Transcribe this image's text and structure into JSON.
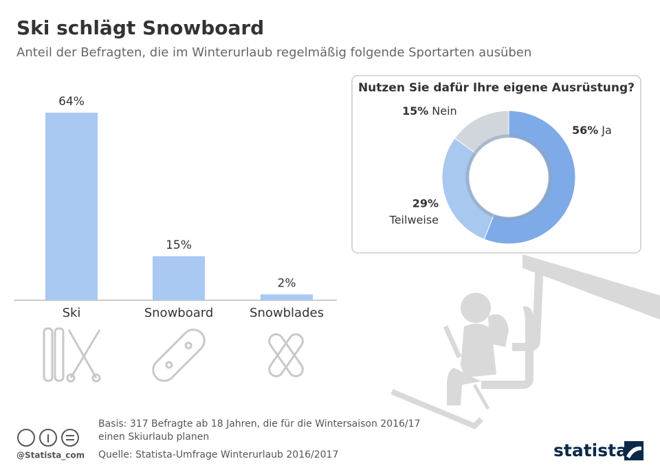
{
  "header": {
    "title": "Ski schlägt Snowboard",
    "subtitle": "Anteil der Befragten, die im Winterurlaub regelmäßig folgende Sportarten ausüben"
  },
  "chart_data": [
    {
      "type": "bar",
      "categories": [
        "Ski",
        "Snowboard",
        "Snowblades"
      ],
      "values": [
        64,
        15,
        2
      ],
      "value_labels": [
        "64%",
        "15%",
        "2%"
      ],
      "color": "#a9c8f2"
    },
    {
      "type": "pie",
      "title": "Nutzen Sie dafür Ihre eigene Ausrüstung?",
      "categories": [
        "Ja",
        "Teilweise",
        "Nein"
      ],
      "values": [
        56,
        29,
        15
      ],
      "value_labels": [
        "56%",
        "29%",
        "15%"
      ],
      "colors": [
        "#7eaae8",
        "#a9c8f0",
        "#d0d6dc"
      ]
    }
  ],
  "footer": {
    "basis": [
      "Basis: 317 Befragte ab 18 Jahren, die für die Wintersaison 2016/17",
      "einen Skiurlaub planen"
    ],
    "source": "Quelle: Statista-Umfrage Winterurlaub 2016/2017",
    "handle": "@Statista_com",
    "brand": "statista"
  }
}
